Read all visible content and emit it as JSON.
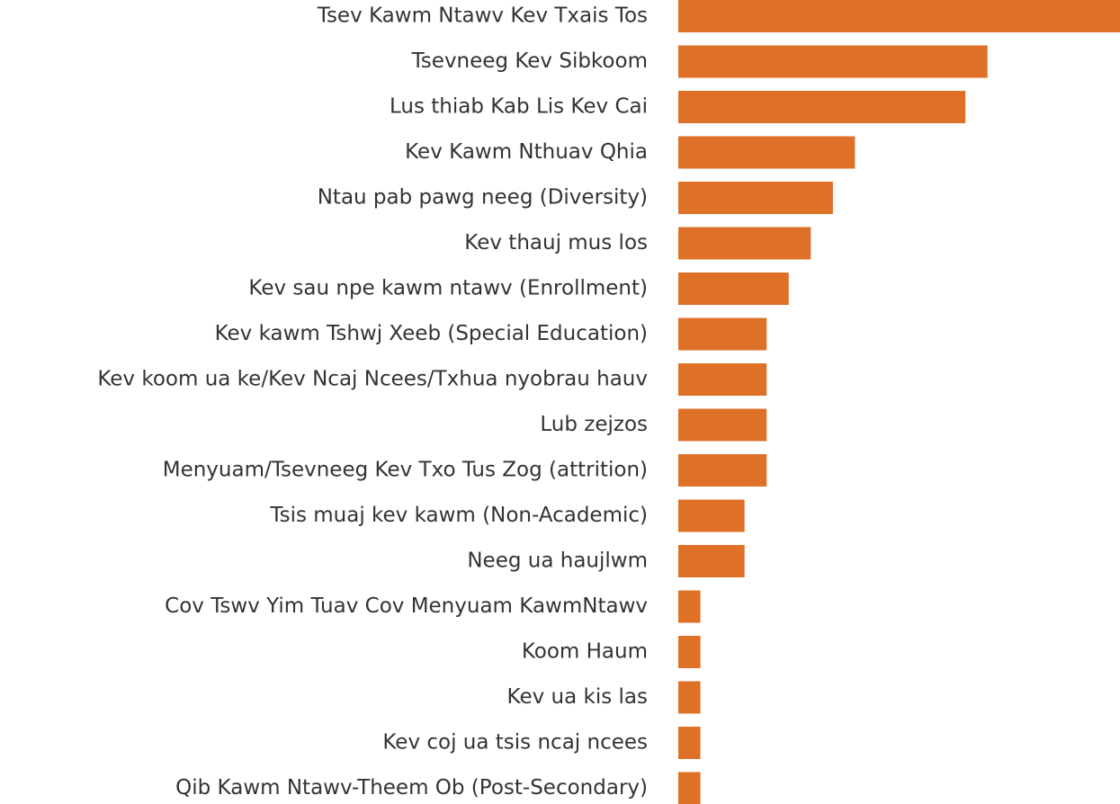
{
  "chart_data": {
    "type": "barh",
    "color": "#de7028",
    "categories": [
      "Tsev Kawm Ntawv Kev Txais Tos",
      "Tsevneeg Kev Sibkoom",
      "Lus thiab Kab Lis Kev Cai",
      "Kev Kawm Nthuav Qhia",
      "Ntau pab pawg neeg (Diversity)",
      "Kev thauj mus los",
      "Kev sau npe kawm ntawv (Enrollment)",
      "Kev kawm Tshwj Xeeb (Special Education)",
      "Kev koom ua ke/Kev Ncaj Ncees/Txhua nyobrau hauv",
      "Lub zejzos",
      "Menyuam/Tsevneeg Kev Txo Tus Zog (attrition)",
      "Tsis muaj kev kawm (Non-Academic)",
      "Neeg ua haujlwm",
      "Cov Tswv Yim Tuav Cov Menyuam KawmNtawv",
      "Koom Haum",
      "Kev ua kis las",
      "Kev coj ua tsis ncaj ncees",
      "Qib Kawm Ntawv-Theem Ob (Post-Secondary)"
    ],
    "values": [
      20,
      14,
      13,
      8,
      7,
      6,
      5,
      4,
      4,
      4,
      4,
      3,
      3,
      1,
      1,
      1,
      1,
      1
    ]
  }
}
